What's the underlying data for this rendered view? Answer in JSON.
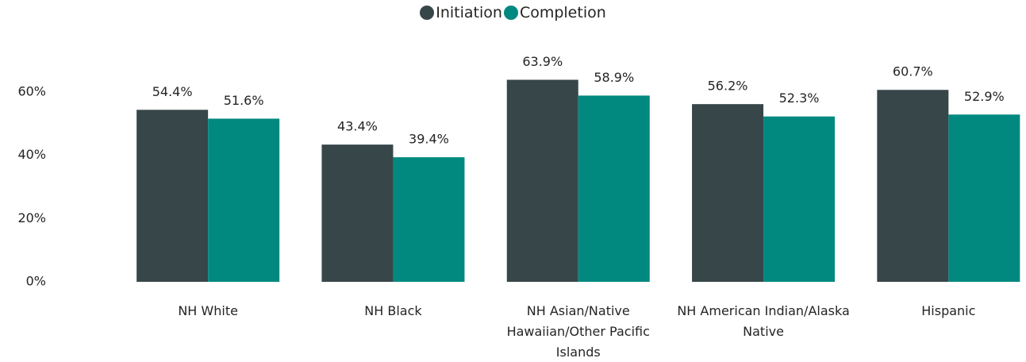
{
  "chart_data": {
    "type": "bar",
    "categories": [
      "NH White",
      "NH Black",
      "NH Asian/Native Hawaiian/Other Pacific Islands",
      "NH American Indian/Alaska Native",
      "Hispanic"
    ],
    "series": [
      {
        "name": "Initiation",
        "color": "#374649",
        "values": [
          54.4,
          43.4,
          63.9,
          56.2,
          60.7
        ],
        "value_labels": [
          "54.4%",
          "43.4%",
          "63.9%",
          "56.2%",
          "60.7%"
        ]
      },
      {
        "name": "Completion",
        "color": "#01897f",
        "values": [
          51.6,
          39.4,
          58.9,
          52.3,
          52.9
        ],
        "value_labels": [
          "51.6%",
          "39.4%",
          "58.9%",
          "52.3%",
          "52.9%"
        ]
      }
    ],
    "ylim": [
      0,
      70
    ],
    "yticks": [
      {
        "value": 0,
        "label": "0%"
      },
      {
        "value": 20,
        "label": "20%"
      },
      {
        "value": 40,
        "label": "40%"
      },
      {
        "value": 60,
        "label": "60%"
      }
    ],
    "legend": "top"
  }
}
